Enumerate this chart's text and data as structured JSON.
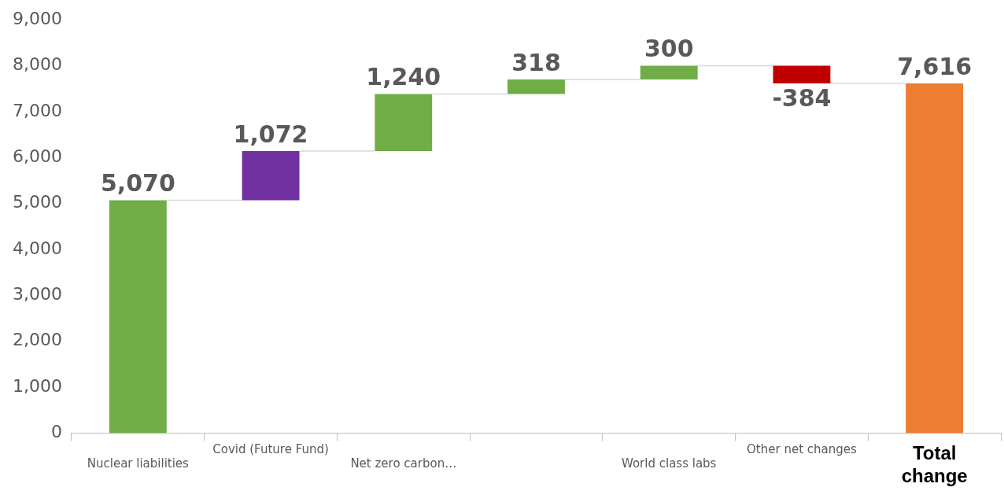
{
  "chart_data": {
    "type": "bar",
    "categories": [
      "Nuclear liabilities",
      "Covid (Future Fund)",
      "Net zero carbon…",
      null,
      "World class labs",
      "Other net changes",
      "Total change"
    ],
    "values": [
      5070,
      1072,
      1240,
      318,
      300,
      -384,
      7616
    ],
    "base": [
      0,
      5070,
      6142,
      7382,
      7700,
      8000,
      0
    ],
    "colors": [
      "#70ad47",
      "#7030a0",
      "#70ad47",
      "#70ad47",
      "#70ad47",
      "#c00000",
      "#ed7d31"
    ],
    "value_labels": [
      "5,070",
      "1,072",
      "1,240",
      "318",
      "300",
      "-384",
      "7,616"
    ],
    "ylim": [
      0,
      9000
    ],
    "yticks": [
      0,
      {
        "value": 1000,
        "label": "1,000"
      },
      {
        "value": 2000,
        "label": "2,000"
      },
      {
        "value": 3000,
        "label": "3,000"
      },
      {
        "value": 4000,
        "label": "4,000"
      },
      {
        "value": 5000,
        "label": "5,000"
      },
      {
        "value": 6000,
        "label": "6,000"
      },
      {
        "value": 7000,
        "label": "7,000"
      },
      {
        "value": 8000,
        "label": "8,000"
      },
      {
        "value": 9000,
        "label": "9,000"
      }
    ]
  }
}
